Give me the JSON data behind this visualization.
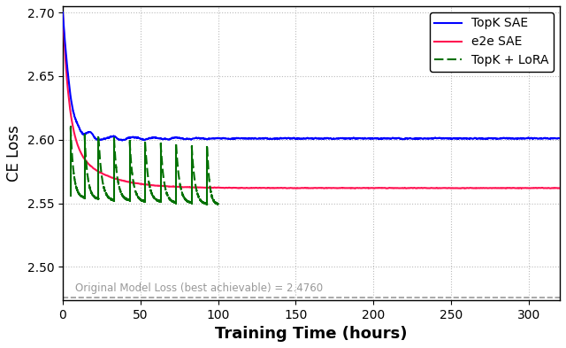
{
  "title": "",
  "xlabel": "Training Time (hours)",
  "ylabel": "CE Loss",
  "xlim": [
    0,
    320
  ],
  "ylim": [
    2.474,
    2.705
  ],
  "yticks": [
    2.5,
    2.55,
    2.6,
    2.65,
    2.7
  ],
  "xticks": [
    0,
    50,
    100,
    150,
    200,
    250,
    300
  ],
  "baseline_y": 2.476,
  "baseline_label": "Original Model Loss (best achievable) = 2.4760",
  "topk_color": "#0000FF",
  "e2e_color": "#FF1050",
  "lora_color": "#007000",
  "topk_linewidth": 1.5,
  "e2e_linewidth": 1.5,
  "lora_linewidth": 1.5,
  "legend_labels": [
    "TopK SAE",
    "e2e SAE",
    "TopK + LoRA"
  ],
  "grid_color": "#bbbbbb",
  "lora_cycle_starts_t": [
    5,
    14,
    23,
    33,
    43,
    53,
    63,
    73,
    83,
    93
  ],
  "lora_cycle_ends_t": [
    14,
    23,
    33,
    43,
    53,
    63,
    73,
    83,
    93,
    100
  ],
  "lora_cycle_start_v": [
    2.61,
    2.604,
    2.602,
    2.601,
    2.599,
    2.598,
    2.597,
    2.596,
    2.595,
    2.594
  ],
  "lora_cycle_end_v": [
    2.554,
    2.553,
    2.552,
    2.552,
    2.551,
    2.551,
    2.55,
    2.55,
    2.549,
    2.549
  ]
}
